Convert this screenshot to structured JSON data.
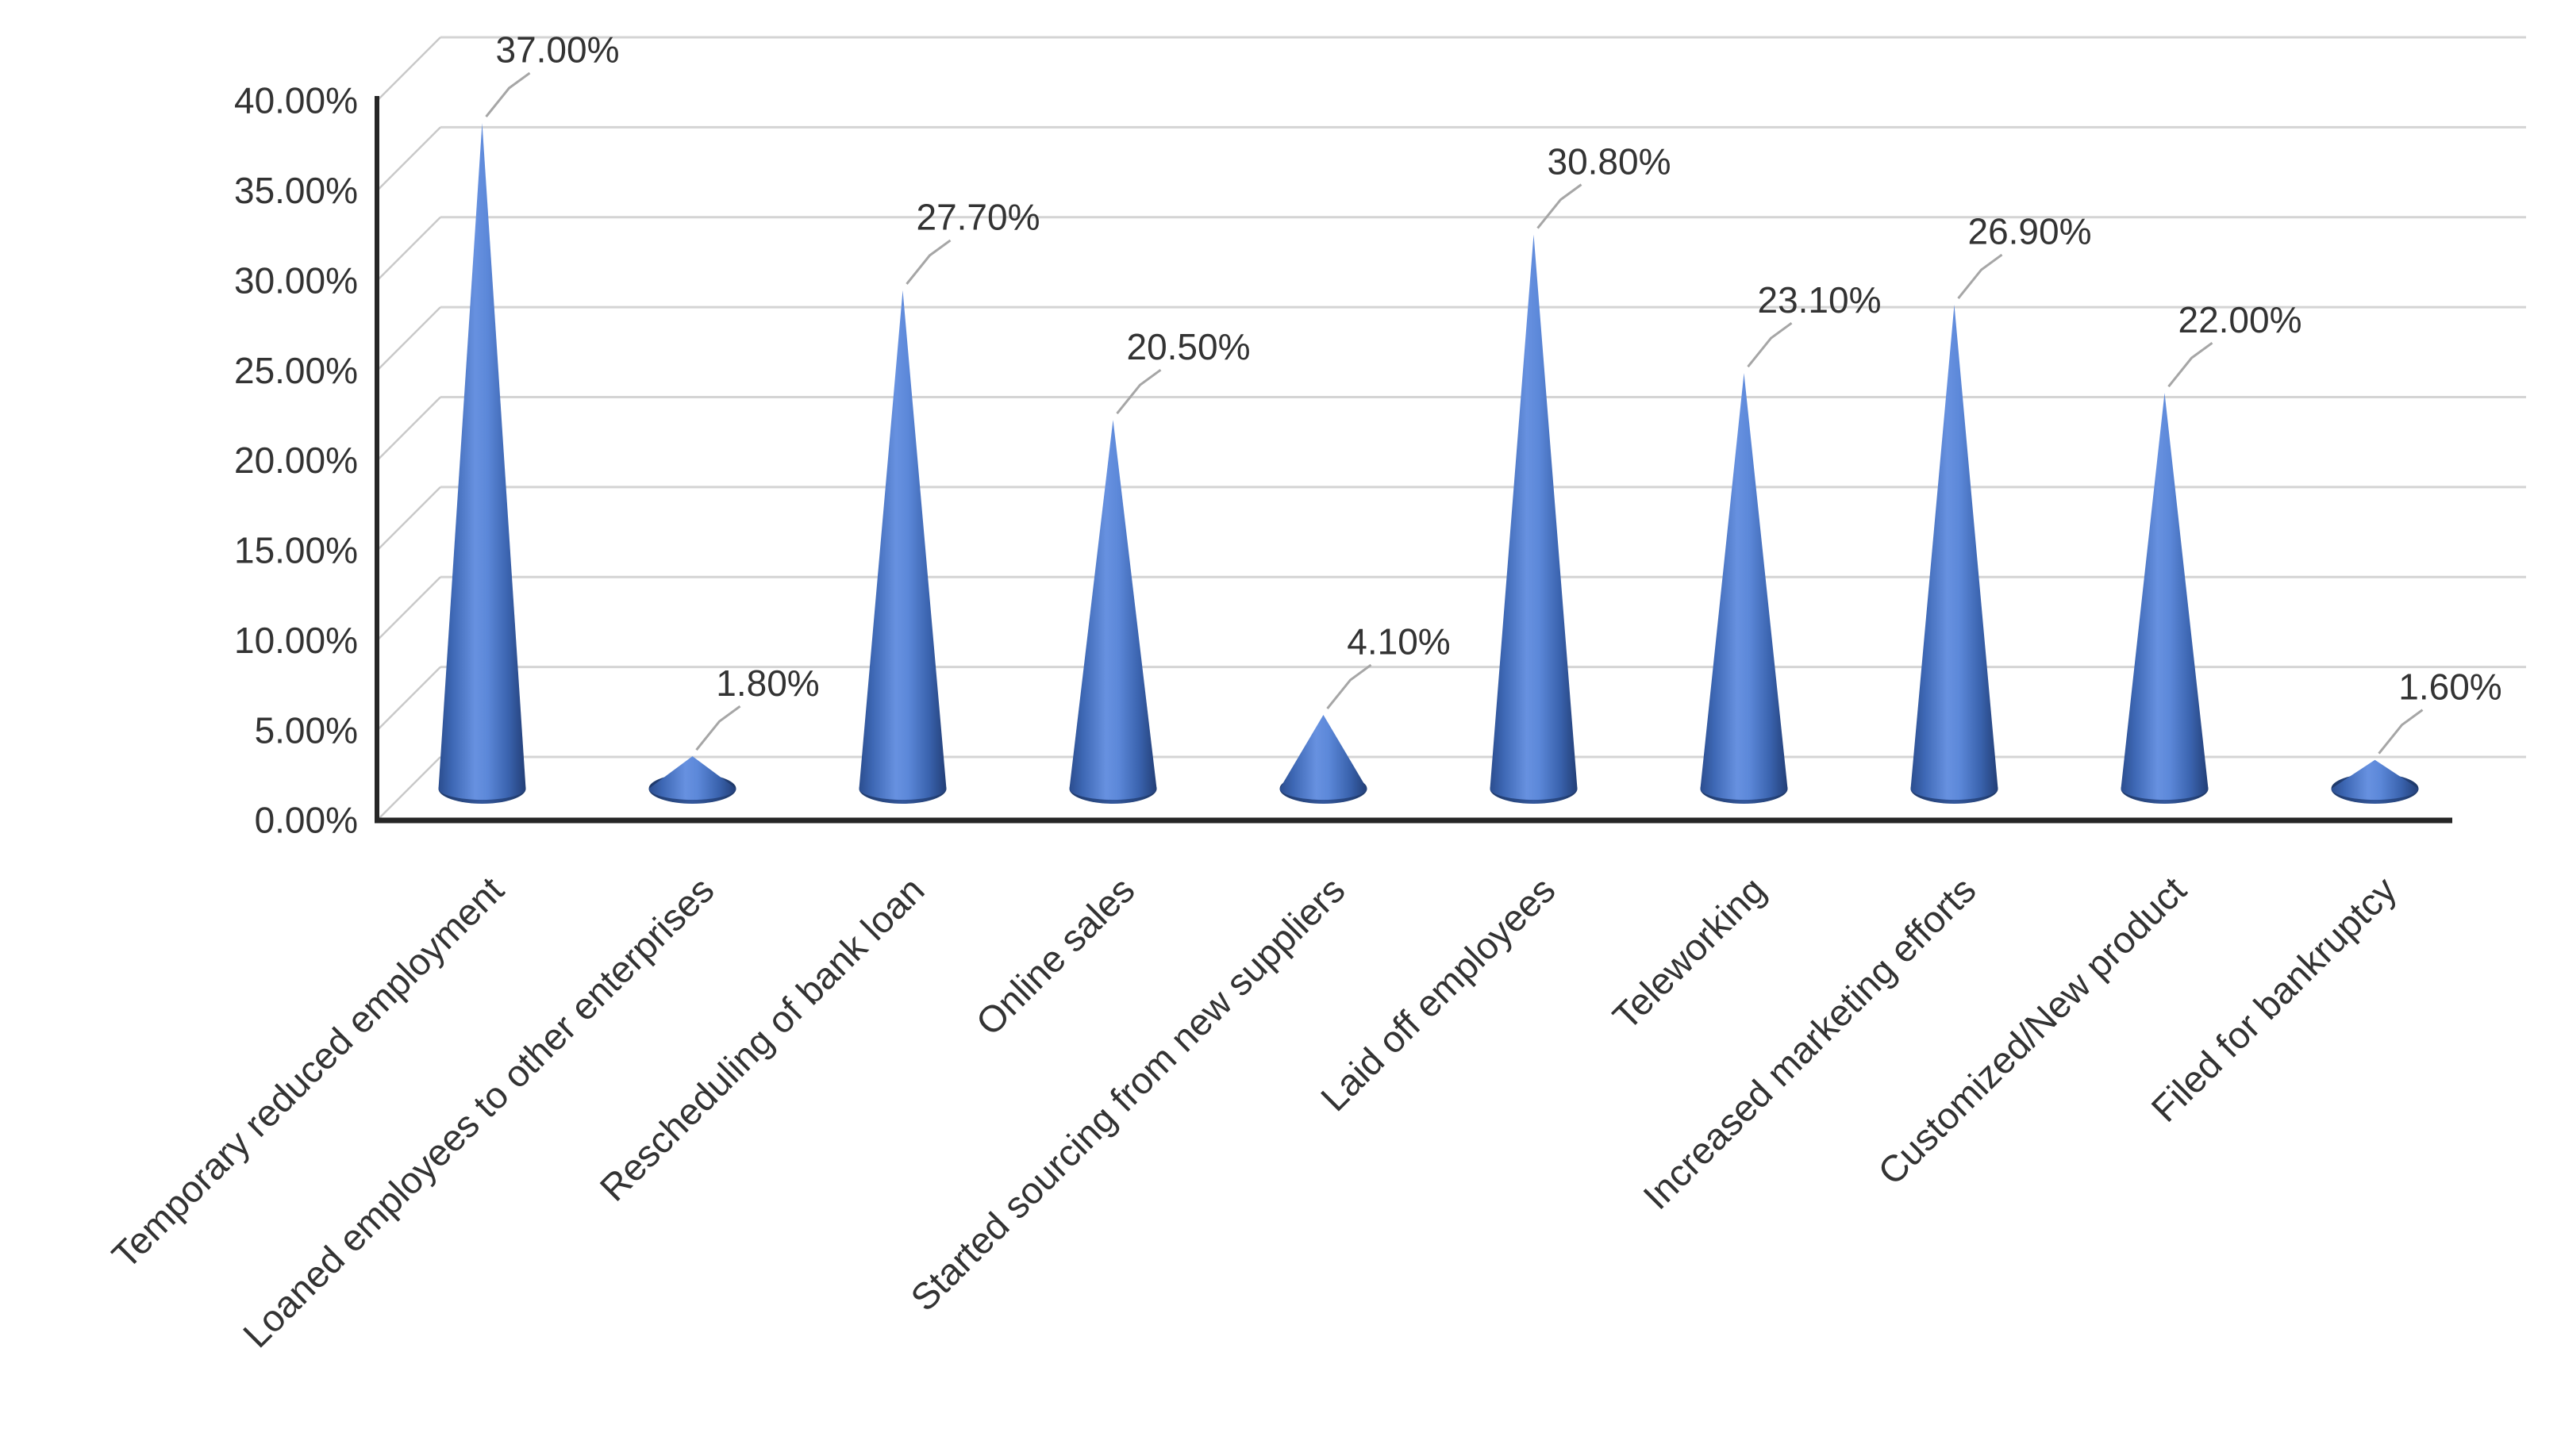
{
  "page": {
    "background": "#ffffff",
    "title": ""
  },
  "chart_data": {
    "type": "bar",
    "subtype": "3d-cone",
    "title": "",
    "xlabel": "",
    "ylabel": "",
    "categories": [
      "Temporary reduced employment",
      "Loaned employees to other enterprises",
      "Rescheduling of bank loan",
      "Online sales",
      "Started sourcing from new suppliers",
      "Laid off employees",
      "Teleworking",
      "Increased marketing efforts",
      "Customized/New product",
      "Filed for bankruptcy"
    ],
    "values": [
      37.0,
      1.8,
      27.7,
      20.5,
      4.1,
      30.8,
      23.1,
      26.9,
      22.0,
      1.6
    ],
    "data_labels": [
      "37.00%",
      "1.80%",
      "27.70%",
      "20.50%",
      "4.10%",
      "30.80%",
      "23.10%",
      "26.90%",
      "22.00%",
      "1.60%"
    ],
    "y_tick_labels": [
      "0.00%",
      "5.00%",
      "10.00%",
      "15.00%",
      "20.00%",
      "25.00%",
      "30.00%",
      "35.00%",
      "40.00%"
    ],
    "ylim": [
      0,
      40
    ],
    "y_tick_step": 5,
    "grid": true,
    "legend": "none",
    "category_label_rotation_deg": 45,
    "colors": {
      "cone_light": "#6791e0",
      "cone_mid": "#4472c4",
      "cone_dark": "#2b4d8e",
      "cone_edge_dark": "#223e76",
      "gridline": "#d4d4d4",
      "depth_connector": "#c9c9c9",
      "axis": "#262626",
      "leader_line": "#a6a6a6",
      "label_text": "#333333",
      "background": "#ffffff"
    }
  }
}
